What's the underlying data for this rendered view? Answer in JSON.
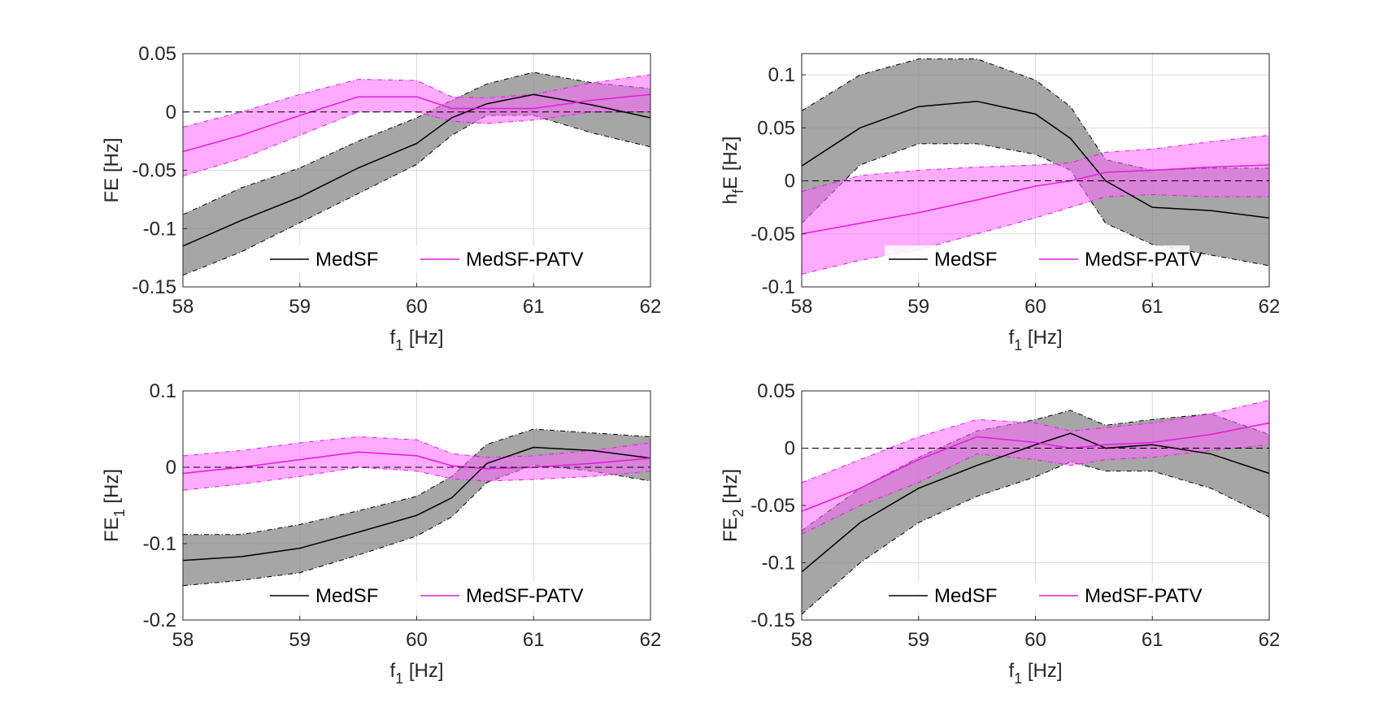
{
  "colors": {
    "medsf_line": "#000000",
    "medsf_band": "#808080",
    "patv_line": "#e619e6",
    "patv_band": "#ff66ff",
    "grid": "#dcdcdc",
    "axes": "#262626"
  },
  "chart_data": [
    {
      "type": "line",
      "title": "",
      "xlabel": "f",
      "xlabel_sub": "1",
      "xlabel_unit": " [Hz]",
      "ylabel": "FE",
      "ylabel_sub": "",
      "ylabel_unit": " [Hz]",
      "xlim": [
        58,
        62
      ],
      "ylim": [
        -0.15,
        0.05
      ],
      "xticks": [
        "58",
        "59",
        "60",
        "61",
        "62"
      ],
      "yticks": [
        "-0.15",
        "-0.1",
        "-0.05",
        "0",
        "0.05"
      ],
      "ytick_values": [
        -0.15,
        -0.1,
        -0.05,
        0,
        0.05
      ],
      "x": [
        58,
        58.5,
        59,
        59.5,
        60,
        60.3,
        60.6,
        61,
        61.5,
        62
      ],
      "series": [
        {
          "name": "MedSF",
          "mean": [
            -0.115,
            -0.093,
            -0.073,
            -0.048,
            -0.027,
            -0.005,
            0.007,
            0.015,
            0.006,
            -0.005
          ],
          "lower": [
            -0.14,
            -0.12,
            -0.095,
            -0.07,
            -0.045,
            -0.02,
            -0.003,
            -0.003,
            -0.018,
            -0.03
          ],
          "upper": [
            -0.088,
            -0.065,
            -0.048,
            -0.025,
            -0.005,
            0.01,
            0.024,
            0.034,
            0.025,
            0.02
          ]
        },
        {
          "name": "MedSF-PATV",
          "mean": [
            -0.034,
            -0.02,
            -0.003,
            0.013,
            0.013,
            0.003,
            0.003,
            0.003,
            0.01,
            0.015
          ],
          "lower": [
            -0.055,
            -0.04,
            -0.02,
            0.0,
            0.0,
            -0.008,
            -0.01,
            -0.007,
            0.0,
            0.0
          ],
          "upper": [
            -0.013,
            0.0,
            0.015,
            0.028,
            0.027,
            0.013,
            0.012,
            0.015,
            0.025,
            0.032
          ]
        }
      ],
      "legend": [
        "MedSF",
        "MedSF-PATV"
      ],
      "legend_position": "bottom-center",
      "grid": true
    },
    {
      "type": "line",
      "title": "",
      "xlabel": "f",
      "xlabel_sub": "1",
      "xlabel_unit": " [Hz]",
      "ylabel": "h",
      "ylabel_sub": "f",
      "ylabel_unit": "E [Hz]",
      "xlim": [
        58,
        62
      ],
      "ylim": [
        -0.1,
        0.12
      ],
      "xticks": [
        "58",
        "59",
        "60",
        "61",
        "62"
      ],
      "yticks": [
        "-0.1",
        "-0.05",
        "0",
        "0.05",
        "0.1"
      ],
      "ytick_values": [
        -0.1,
        -0.05,
        0,
        0.05,
        0.1
      ],
      "x": [
        58,
        58.5,
        59,
        59.5,
        60,
        60.3,
        60.6,
        61,
        61.5,
        62
      ],
      "series": [
        {
          "name": "MedSF",
          "mean": [
            0.014,
            0.05,
            0.07,
            0.075,
            0.063,
            0.04,
            0.0,
            -0.025,
            -0.028,
            -0.035
          ],
          "lower": [
            -0.04,
            0.015,
            0.035,
            0.035,
            0.025,
            0.01,
            -0.04,
            -0.06,
            -0.07,
            -0.08
          ],
          "upper": [
            0.066,
            0.1,
            0.115,
            0.115,
            0.095,
            0.07,
            0.02,
            0.01,
            0.012,
            0.012
          ]
        },
        {
          "name": "MedSF-PATV",
          "mean": [
            -0.05,
            -0.04,
            -0.03,
            -0.018,
            -0.005,
            0.0,
            0.008,
            0.01,
            0.013,
            0.015
          ],
          "lower": [
            -0.088,
            -0.075,
            -0.065,
            -0.05,
            -0.035,
            -0.025,
            -0.015,
            -0.013,
            -0.015,
            -0.015
          ],
          "upper": [
            -0.01,
            0.005,
            0.01,
            0.013,
            0.015,
            0.017,
            0.027,
            0.03,
            0.037,
            0.043
          ]
        }
      ],
      "legend": [
        "MedSF",
        "MedSF-PATV"
      ],
      "legend_position": "bottom-right",
      "grid": true
    },
    {
      "type": "line",
      "title": "",
      "xlabel": "f",
      "xlabel_sub": "1",
      "xlabel_unit": " [Hz]",
      "ylabel": "FE",
      "ylabel_sub": "1",
      "ylabel_unit": " [Hz]",
      "xlim": [
        58,
        62
      ],
      "ylim": [
        -0.2,
        0.1
      ],
      "xticks": [
        "58",
        "59",
        "60",
        "61",
        "62"
      ],
      "yticks": [
        "-0.2",
        "-0.1",
        "0",
        "0.1"
      ],
      "ytick_values": [
        -0.2,
        -0.1,
        0,
        0.1
      ],
      "x": [
        58,
        58.5,
        59,
        59.5,
        60,
        60.3,
        60.6,
        61,
        61.5,
        62
      ],
      "series": [
        {
          "name": "MedSF",
          "mean": [
            -0.122,
            -0.117,
            -0.106,
            -0.085,
            -0.063,
            -0.04,
            0.005,
            0.026,
            0.022,
            0.012
          ],
          "lower": [
            -0.155,
            -0.148,
            -0.138,
            -0.115,
            -0.09,
            -0.065,
            -0.02,
            0.003,
            -0.005,
            -0.018
          ],
          "upper": [
            -0.088,
            -0.088,
            -0.075,
            -0.057,
            -0.038,
            -0.012,
            0.03,
            0.05,
            0.045,
            0.04
          ]
        },
        {
          "name": "MedSF-PATV",
          "mean": [
            -0.008,
            0.0,
            0.01,
            0.02,
            0.015,
            0.002,
            -0.002,
            0.0,
            0.005,
            0.012
          ],
          "lower": [
            -0.03,
            -0.022,
            -0.012,
            0.0,
            -0.005,
            -0.015,
            -0.018,
            -0.016,
            -0.012,
            -0.005
          ],
          "upper": [
            0.015,
            0.022,
            0.032,
            0.04,
            0.036,
            0.018,
            0.013,
            0.015,
            0.022,
            0.032
          ]
        }
      ],
      "legend": [
        "MedSF",
        "MedSF-PATV"
      ],
      "legend_position": "bottom-center",
      "grid": true
    },
    {
      "type": "line",
      "title": "",
      "xlabel": "f",
      "xlabel_sub": "1",
      "xlabel_unit": " [Hz]",
      "ylabel": "FE",
      "ylabel_sub": "2",
      "ylabel_unit": " [Hz]",
      "xlim": [
        58,
        62
      ],
      "ylim": [
        -0.15,
        0.05
      ],
      "xticks": [
        "58",
        "59",
        "60",
        "61",
        "62"
      ],
      "yticks": [
        "-0.15",
        "-0.1",
        "-0.05",
        "0",
        "0.05"
      ],
      "ytick_values": [
        -0.15,
        -0.1,
        -0.05,
        0,
        0.05
      ],
      "x": [
        58,
        58.5,
        59,
        59.5,
        60,
        60.3,
        60.6,
        61,
        61.5,
        62
      ],
      "series": [
        {
          "name": "MedSF",
          "mean": [
            -0.108,
            -0.065,
            -0.035,
            -0.015,
            0.003,
            0.013,
            0.0,
            0.003,
            -0.005,
            -0.022
          ],
          "lower": [
            -0.145,
            -0.1,
            -0.065,
            -0.042,
            -0.025,
            -0.012,
            -0.02,
            -0.02,
            -0.035,
            -0.06
          ],
          "upper": [
            -0.072,
            -0.035,
            -0.008,
            0.015,
            0.025,
            0.033,
            0.02,
            0.025,
            0.03,
            0.012
          ]
        },
        {
          "name": "MedSF-PATV",
          "mean": [
            -0.055,
            -0.035,
            -0.01,
            0.01,
            0.005,
            0.0,
            0.003,
            0.005,
            0.012,
            0.022
          ],
          "lower": [
            -0.075,
            -0.05,
            -0.03,
            -0.005,
            -0.01,
            -0.015,
            -0.01,
            -0.008,
            -0.002,
            0.003
          ],
          "upper": [
            -0.03,
            -0.01,
            0.01,
            0.025,
            0.022,
            0.015,
            0.018,
            0.022,
            0.03,
            0.042
          ]
        }
      ],
      "legend": [
        "MedSF",
        "MedSF-PATV"
      ],
      "legend_position": "bottom-right",
      "grid": true
    }
  ]
}
